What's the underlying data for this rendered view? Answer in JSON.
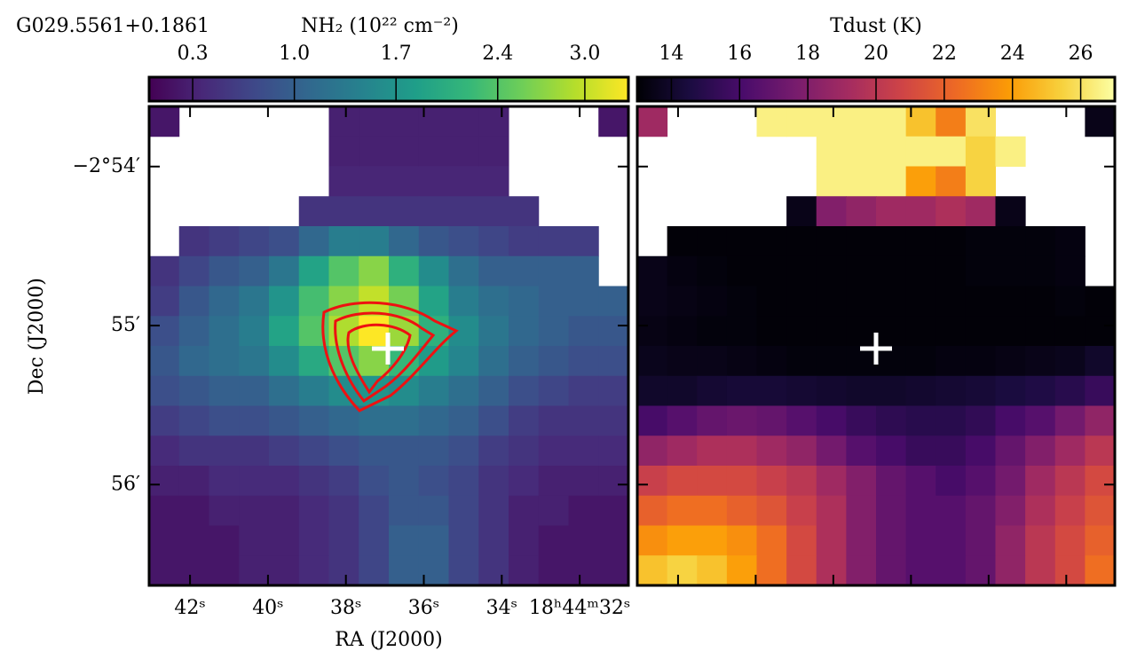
{
  "chart_data": [
    {
      "type": "heatmap",
      "title": "G029.5561+0.1861",
      "colorbar_label": "NH₂ (10²² cm⁻²)",
      "colormap": "viridis",
      "clim": [
        0,
        3.3
      ],
      "cticks": [
        0.3,
        {
          "value": 1,
          "label": "1.0"
        },
        1.7,
        2.4,
        {
          "value": 3,
          "label": "3.0"
        }
      ],
      "xlabel": "RA (J2000)",
      "ylabel": "Dec (J2000)",
      "xlim": [
        43.05,
        30.75
      ],
      "ylim": [
        -2.9439,
        -2.8937
      ],
      "xticks": [
        {
          "value": 42,
          "label": "42ˢ"
        },
        {
          "value": 40,
          "label": "40ˢ"
        },
        {
          "value": 38,
          "label": "38ˢ"
        },
        {
          "value": 36,
          "label": "36ˢ"
        },
        {
          "value": 34,
          "label": "34ˢ"
        },
        {
          "value": 32,
          "label": "18ʰ44ᵐ32ˢ"
        }
      ],
      "yticks": [
        {
          "value": -2.9,
          "label": "−2°54′"
        },
        {
          "value": -2.916667,
          "label": "55′"
        },
        {
          "value": -2.933333,
          "label": "56′"
        }
      ],
      "values": [
        [
          0.2,
          null,
          null,
          null,
          null,
          null,
          0.3,
          0.3,
          0.3,
          0.3,
          0.3,
          0.3,
          null,
          null,
          null,
          0.2
        ],
        [
          null,
          null,
          null,
          null,
          null,
          null,
          0.3,
          0.3,
          0.3,
          0.3,
          0.3,
          0.3,
          null,
          null,
          null,
          null
        ],
        [
          null,
          null,
          null,
          null,
          null,
          null,
          0.35,
          0.35,
          0.35,
          0.35,
          0.35,
          0.35,
          null,
          null,
          null,
          null
        ],
        [
          null,
          null,
          null,
          null,
          null,
          0.5,
          0.5,
          0.5,
          0.5,
          0.5,
          0.5,
          0.5,
          0.5,
          null,
          null,
          null
        ],
        [
          null,
          0.5,
          0.6,
          0.7,
          0.8,
          1.1,
          1.4,
          1.4,
          1.1,
          0.9,
          0.8,
          0.7,
          0.6,
          0.6,
          0.6,
          null
        ],
        [
          0.5,
          0.7,
          0.9,
          1.0,
          1.3,
          1.9,
          2.4,
          2.7,
          2.1,
          1.6,
          1.2,
          1.0,
          1.0,
          1.0,
          1.0,
          null
        ],
        [
          0.6,
          0.9,
          1.1,
          1.3,
          1.7,
          2.3,
          2.7,
          3.0,
          2.6,
          1.9,
          1.4,
          1.2,
          1.1,
          1.0,
          1.0,
          1.0
        ],
        [
          0.8,
          1.0,
          1.2,
          1.4,
          1.9,
          2.4,
          2.9,
          3.3,
          2.8,
          2.1,
          1.6,
          1.3,
          1.1,
          1.0,
          0.9,
          0.9
        ],
        [
          0.9,
          1.1,
          1.2,
          1.3,
          1.6,
          2.0,
          2.4,
          2.7,
          2.2,
          1.8,
          1.5,
          1.2,
          1.0,
          0.9,
          0.8,
          0.8
        ],
        [
          0.8,
          0.9,
          1.0,
          1.0,
          1.2,
          1.4,
          1.6,
          1.7,
          1.6,
          1.4,
          1.2,
          1.0,
          0.8,
          0.7,
          0.6,
          0.6
        ],
        [
          0.6,
          0.7,
          0.8,
          0.8,
          0.9,
          1.0,
          1.1,
          1.2,
          1.2,
          1.1,
          1.0,
          0.8,
          0.6,
          0.5,
          0.5,
          0.5
        ],
        [
          0.4,
          0.5,
          0.5,
          0.5,
          0.6,
          0.7,
          0.8,
          0.9,
          0.9,
          0.9,
          0.8,
          0.6,
          0.5,
          0.4,
          0.4,
          0.4
        ],
        [
          0.3,
          0.3,
          0.4,
          0.4,
          0.4,
          0.5,
          0.6,
          0.8,
          0.9,
          0.8,
          0.7,
          0.5,
          0.4,
          0.3,
          0.3,
          0.3
        ],
        [
          0.2,
          0.2,
          0.3,
          0.3,
          0.3,
          0.4,
          0.5,
          0.7,
          0.9,
          0.9,
          0.7,
          0.5,
          0.3,
          0.3,
          0.2,
          0.2
        ],
        [
          0.2,
          0.2,
          0.2,
          0.3,
          0.3,
          0.4,
          0.5,
          0.7,
          1.0,
          1.0,
          0.7,
          0.5,
          0.3,
          0.2,
          0.2,
          0.2
        ],
        [
          0.2,
          0.2,
          0.2,
          0.3,
          0.3,
          0.4,
          0.5,
          0.7,
          1.0,
          1.0,
          0.7,
          0.5,
          0.3,
          0.2,
          0.2,
          0.2
        ]
      ]
    },
    {
      "type": "heatmap",
      "colorbar_label": "Tdust (K)",
      "colormap": "inferno",
      "clim": [
        13,
        27
      ],
      "cticks": [
        14,
        16,
        18,
        20,
        22,
        24,
        26
      ],
      "values": [
        [
          19,
          null,
          null,
          null,
          26.5,
          26.5,
          26.5,
          26.5,
          26.5,
          25,
          23,
          26,
          null,
          null,
          null,
          13.5
        ],
        [
          null,
          null,
          null,
          null,
          null,
          null,
          26.5,
          26.5,
          26.5,
          26.5,
          26.5,
          25.5,
          26.5,
          null,
          null,
          null
        ],
        [
          null,
          null,
          null,
          null,
          null,
          null,
          26.5,
          26.5,
          26.5,
          24,
          23,
          25.5,
          null,
          null,
          null,
          null
        ],
        [
          null,
          null,
          null,
          null,
          null,
          13.5,
          18,
          18.5,
          19,
          19,
          19.5,
          19,
          13.5,
          null,
          null,
          null
        ],
        [
          null,
          13.1,
          13.1,
          13.1,
          13.1,
          13.1,
          13.1,
          13.1,
          13.1,
          13.1,
          13.1,
          13.2,
          13.2,
          13.2,
          13.3,
          null
        ],
        [
          13.5,
          13.3,
          13.2,
          13.1,
          13.1,
          13.1,
          13.1,
          13.1,
          13.1,
          13.1,
          13.1,
          13.2,
          13.2,
          13.2,
          13.3,
          null
        ],
        [
          13.5,
          13.4,
          13.3,
          13.2,
          13.1,
          13.1,
          13.1,
          13.1,
          13.1,
          13.1,
          13.1,
          13.1,
          13.1,
          13.1,
          13.2,
          13.1
        ],
        [
          13.4,
          13.3,
          13.2,
          13.2,
          13.1,
          13.1,
          13.1,
          13.1,
          13.1,
          13.1,
          13.1,
          13.1,
          13.1,
          13.1,
          13.1,
          13.1
        ],
        [
          13.6,
          13.5,
          13.5,
          13.4,
          13.3,
          13.2,
          13.2,
          13.2,
          13.2,
          13.2,
          13.3,
          13.3,
          13.4,
          13.5,
          13.6,
          14.0
        ],
        [
          14,
          14,
          14.2,
          14.3,
          14.3,
          14.2,
          14.1,
          14,
          14,
          14.1,
          14.2,
          14.3,
          14.5,
          14.7,
          15,
          15.5
        ],
        [
          16,
          16.5,
          17,
          17.2,
          17,
          16.5,
          16,
          15.5,
          15.2,
          15.0,
          15,
          15.3,
          16,
          16.5,
          17.5,
          18.5
        ],
        [
          18.5,
          19,
          19.5,
          19.5,
          19,
          18.5,
          17.5,
          16.5,
          16,
          15.5,
          15.5,
          16,
          17,
          18,
          19,
          20
        ],
        [
          20.5,
          21,
          21,
          21,
          20.5,
          20,
          19,
          18,
          17,
          16.5,
          16,
          16.5,
          17.5,
          19,
          20,
          21
        ],
        [
          22,
          22.5,
          22.5,
          22,
          21.5,
          20.5,
          19.5,
          18,
          17,
          16.5,
          16.5,
          17,
          18,
          19.5,
          20.5,
          21.5
        ],
        [
          23.5,
          24,
          24,
          23.5,
          22.5,
          21,
          19.5,
          18,
          17,
          16.5,
          16.5,
          17,
          18.5,
          20,
          21,
          22
        ],
        [
          25,
          25.5,
          25,
          24,
          22.5,
          21,
          19.5,
          18,
          17,
          16.5,
          16.5,
          17,
          18.5,
          20,
          21,
          22.5
        ]
      ]
    }
  ]
}
